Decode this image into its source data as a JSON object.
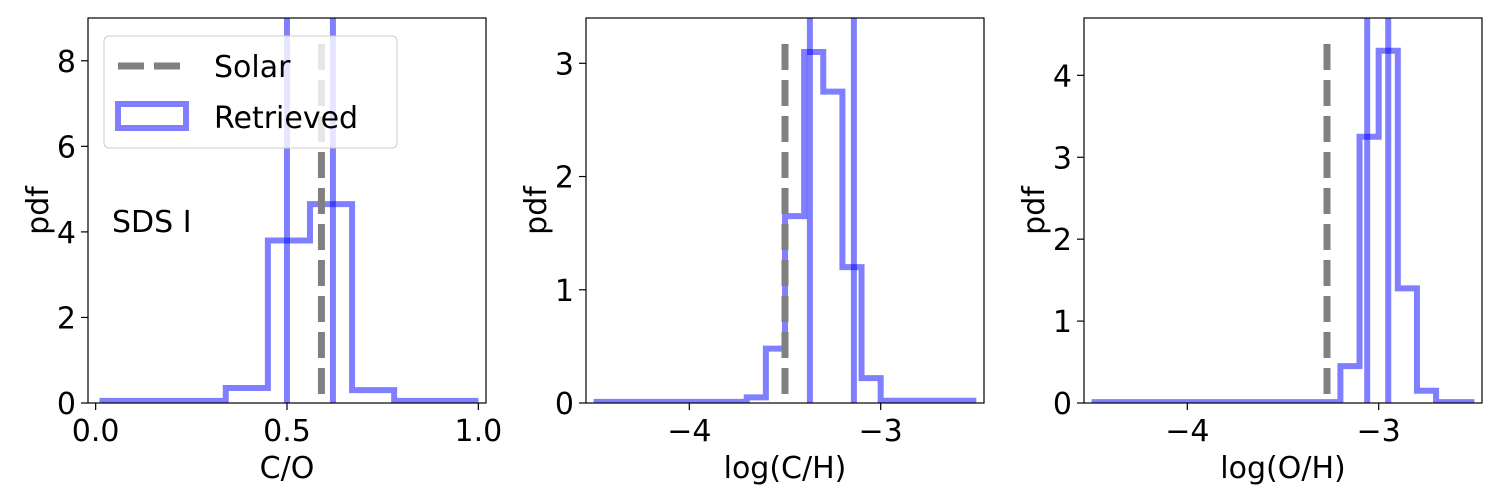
{
  "colors": {
    "retrieved": "#0000ff",
    "solar": "#808080",
    "axis": "#000000"
  },
  "chart_data": [
    {
      "type": "histogram",
      "xlabel": "C/O",
      "ylabel": "pdf",
      "xlim": [
        -0.02,
        1.02
      ],
      "ylim": [
        0,
        9
      ],
      "xticks": [
        0.0,
        0.5,
        1.0
      ],
      "xtick_labels": [
        "0.0",
        "0.5",
        "1.0"
      ],
      "yticks": [
        0,
        2,
        4,
        6,
        8
      ],
      "ytick_labels": [
        "0",
        "2",
        "4",
        "6",
        "8"
      ],
      "annotation": "SDS I",
      "legend": {
        "location": "upper-left",
        "entries": [
          "Solar",
          "Retrieved"
        ]
      },
      "solar_x": 0.59,
      "retrieved_hist": {
        "edges": [
          0.01,
          0.12,
          0.23,
          0.34,
          0.45,
          0.56,
          0.67,
          0.78,
          0.89,
          1.0
        ],
        "heights": [
          0.05,
          0.05,
          0.05,
          0.35,
          3.8,
          4.65,
          0.3,
          0.05,
          0.05
        ]
      },
      "vertical_lines": [
        0.5,
        0.62
      ]
    },
    {
      "type": "histogram",
      "xlabel": "log(C/H)",
      "ylabel": "pdf",
      "xlim": [
        -4.54,
        -2.46
      ],
      "ylim": [
        0,
        3.4
      ],
      "xticks": [
        -4,
        -3
      ],
      "xtick_labels": [
        "−4",
        "−3"
      ],
      "yticks": [
        0,
        1,
        2,
        3
      ],
      "ytick_labels": [
        "0",
        "1",
        "2",
        "3"
      ],
      "solar_x": -3.5,
      "retrieved_hist": {
        "edges": [
          -4.5,
          -4.4,
          -4.3,
          -4.2,
          -4.1,
          -4.0,
          -3.9,
          -3.8,
          -3.7,
          -3.6,
          -3.5,
          -3.4,
          -3.3,
          -3.2,
          -3.1,
          -3.0,
          -2.9,
          -2.8,
          -2.7,
          -2.6,
          -2.5
        ],
        "heights": [
          0.01,
          0.01,
          0.01,
          0.01,
          0.01,
          0.01,
          0.01,
          0.01,
          0.05,
          0.48,
          1.65,
          3.1,
          2.75,
          1.2,
          0.22,
          0.02,
          0.02,
          0.02,
          0.02,
          0.02
        ]
      },
      "vertical_lines": [
        -3.37,
        -3.14
      ]
    },
    {
      "type": "histogram",
      "xlabel": "log(O/H)",
      "ylabel": "pdf",
      "xlim": [
        -4.54,
        -2.46
      ],
      "ylim": [
        0,
        4.7
      ],
      "xticks": [
        -4,
        -3
      ],
      "xtick_labels": [
        "−4",
        "−3"
      ],
      "yticks": [
        0,
        1,
        2,
        3,
        4
      ],
      "ytick_labels": [
        "0",
        "1",
        "2",
        "3",
        "4"
      ],
      "solar_x": -3.27,
      "retrieved_hist": {
        "edges": [
          -4.5,
          -4.4,
          -4.3,
          -4.2,
          -4.1,
          -4.0,
          -3.9,
          -3.8,
          -3.7,
          -3.6,
          -3.5,
          -3.4,
          -3.3,
          -3.2,
          -3.1,
          -3.0,
          -2.9,
          -2.8,
          -2.7,
          -2.6,
          -2.5
        ],
        "heights": [
          0.01,
          0.01,
          0.01,
          0.01,
          0.01,
          0.01,
          0.01,
          0.01,
          0.01,
          0.01,
          0.01,
          0.01,
          0.01,
          0.45,
          3.25,
          4.3,
          1.4,
          0.15,
          0.01,
          0.01
        ]
      },
      "vertical_lines": [
        -3.06,
        -2.95
      ]
    }
  ]
}
